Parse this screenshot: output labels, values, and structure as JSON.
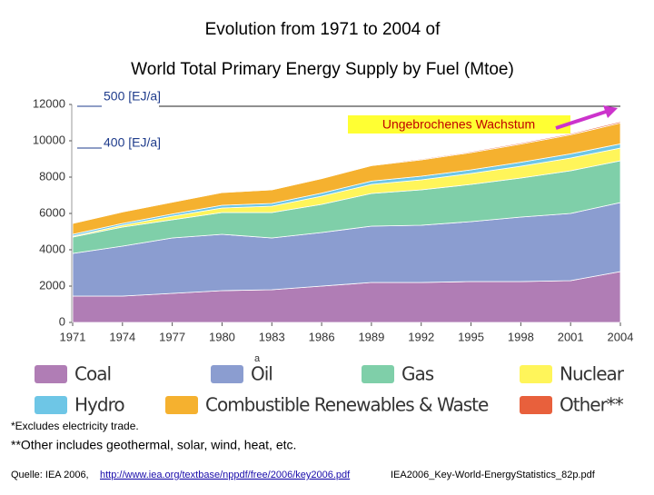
{
  "chart_data": {
    "type": "stacked_area",
    "title": "Evolution from 1971 to 2004 of",
    "subtitle": "World Total Primary Energy Supply by Fuel (Mtoe)",
    "x": [
      1971,
      1974,
      1977,
      1980,
      1983,
      1986,
      1989,
      1992,
      1995,
      1998,
      2001,
      2004
    ],
    "xlim": [
      1971,
      2004
    ],
    "xticks": [
      1971,
      1974,
      1977,
      1980,
      1983,
      1986,
      1989,
      1992,
      1995,
      1998,
      2001,
      2004
    ],
    "ylim": [
      0,
      12000
    ],
    "yticks": [
      0,
      2000,
      4000,
      6000,
      8000,
      10000,
      12000
    ],
    "series": [
      {
        "name": "Coal",
        "color": "#b07db5",
        "values": [
          1450,
          1450,
          1600,
          1750,
          1800,
          2000,
          2200,
          2200,
          2250,
          2250,
          2300,
          2800
        ]
      },
      {
        "name": "Oil",
        "color": "#8b9dd0",
        "values": [
          2350,
          2750,
          3050,
          3100,
          2850,
          2950,
          3100,
          3150,
          3300,
          3550,
          3700,
          3800
        ]
      },
      {
        "name": "Gas",
        "color": "#7fcfa9",
        "values": [
          900,
          1050,
          1000,
          1200,
          1400,
          1550,
          1800,
          1950,
          2050,
          2150,
          2350,
          2300
        ]
      },
      {
        "name": "Nuclear",
        "color": "#fff55a",
        "values": [
          50,
          100,
          200,
          250,
          350,
          450,
          500,
          550,
          600,
          650,
          700,
          700
        ]
      },
      {
        "name": "Hydro",
        "color": "#6ec6e6",
        "values": [
          100,
          100,
          120,
          150,
          150,
          170,
          180,
          200,
          200,
          220,
          230,
          230
        ]
      },
      {
        "name": "Combustible Renewables & Waste",
        "color": "#f5b12f",
        "values": [
          600,
          630,
          650,
          700,
          750,
          800,
          850,
          900,
          950,
          1000,
          1050,
          1150
        ]
      },
      {
        "name": "Other**",
        "color": "#e8603c",
        "values": [
          10,
          10,
          15,
          20,
          25,
          30,
          40,
          45,
          50,
          55,
          60,
          70
        ]
      }
    ],
    "annotations": [
      "500 [EJ/a]",
      "400 [EJ/a]",
      "Ungebrochenes Wachstum",
      "a"
    ]
  },
  "notes": [
    "*Excludes electricity trade.",
    "**Other includes geothermal, solar, wind, heat, etc."
  ],
  "source": {
    "label": "Quelle: IEA 2006,",
    "url": "http://www.iea.org/textbase/nppdf/free/2006/key2006.pdf",
    "file": "IEA2006_Key-World-EnergyStatistics_82p.pdf"
  }
}
